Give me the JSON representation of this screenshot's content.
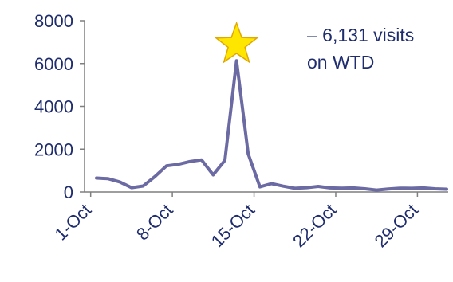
{
  "chart_data": {
    "type": "line",
    "title": "",
    "xlabel": "",
    "ylabel": "",
    "ylim": [
      0,
      8000
    ],
    "y_ticks": [
      "0",
      "2000",
      "4000",
      "6000",
      "8000"
    ],
    "x_tick_labels": [
      "1-Oct",
      "8-Oct",
      "15-Oct",
      "22-Oct",
      "29-Oct"
    ],
    "x_tick_days": [
      1,
      8,
      15,
      22,
      29
    ],
    "grid": false,
    "line_color": "#6b6aa3",
    "axis_color": "#7f7f7f",
    "star_color": "#ffe600",
    "series": [
      {
        "x": [
          1,
          2,
          3,
          4,
          5,
          6,
          7,
          8,
          9,
          10,
          11,
          12,
          13,
          14,
          15,
          16,
          17,
          18,
          19,
          20,
          21,
          22,
          23,
          24,
          25,
          26,
          27,
          28,
          29,
          30,
          31
        ],
        "values": [
          650,
          620,
          470,
          200,
          280,
          720,
          1220,
          1290,
          1420,
          1500,
          800,
          1480,
          6131,
          1780,
          240,
          390,
          270,
          170,
          200,
          260,
          190,
          180,
          190,
          150,
          90,
          140,
          180,
          170,
          190,
          150,
          130
        ]
      }
    ],
    "annotation": {
      "line1": "– 6,131 visits",
      "line2": "on WTD",
      "marker": "star-icon",
      "at_x": 13
    }
  }
}
